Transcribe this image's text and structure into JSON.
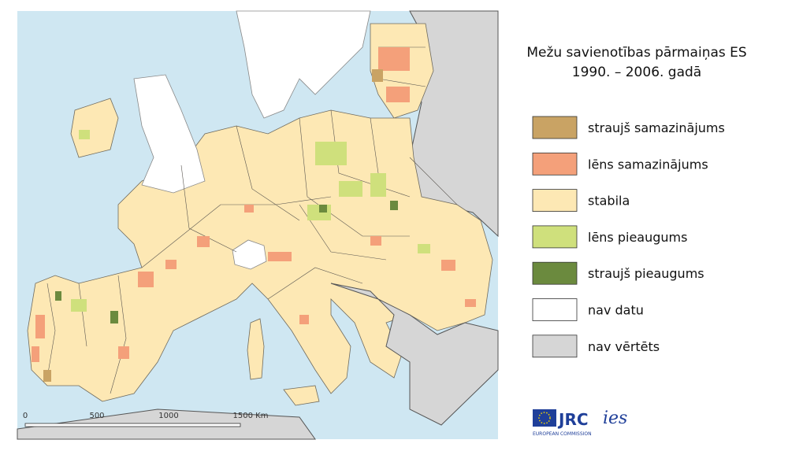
{
  "title": [
    "Mežu savienotības pārmaiņas ES",
    "1990. – 2006. gadā"
  ],
  "legend": [
    {
      "label": "straujš samazinājums",
      "color": "#c9a364"
    },
    {
      "label": "lēns samazinājums",
      "color": "#f4a07a"
    },
    {
      "label": "stabila",
      "color": "#fde8b4"
    },
    {
      "label": "lēns pieaugums",
      "color": "#cfe07c"
    },
    {
      "label": "straujš pieaugums",
      "color": "#6b8a3e"
    },
    {
      "label": "nav datu",
      "color": "#ffffff"
    },
    {
      "label": "nav vērtēts",
      "color": "#d6d6d6"
    }
  ],
  "scale_bar": [
    "0",
    "500",
    "1000",
    "1500 Km"
  ],
  "logos": {
    "jrc": "JRC",
    "commission": "EUROPEAN COMMISSION",
    "ies": "ies"
  }
}
